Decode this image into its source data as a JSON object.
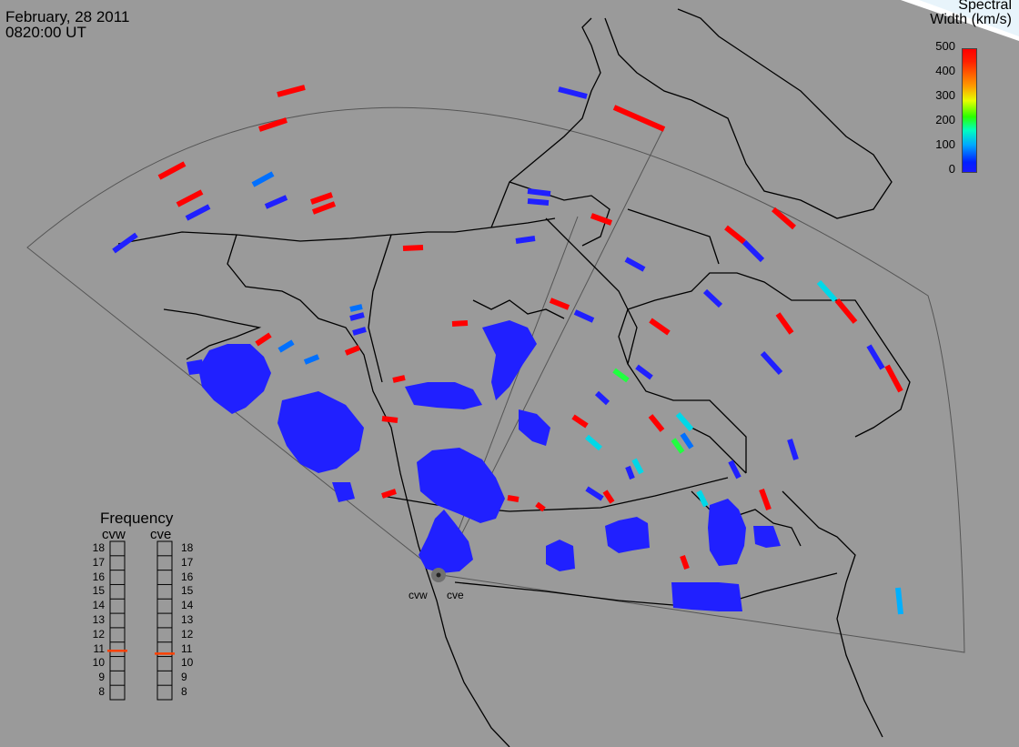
{
  "header": {
    "date": "February, 28 2011",
    "time": "0820:00 UT"
  },
  "colorbar": {
    "title_line1": "Spectral",
    "title_line2": "Width (km/s)",
    "ticks": [
      "500",
      "400",
      "300",
      "200",
      "100",
      "0"
    ]
  },
  "frequency": {
    "title": "Frequency",
    "radar_left": "cvw",
    "radar_right": "cve",
    "levels": [
      "18",
      "17",
      "16",
      "15",
      "14",
      "13",
      "12",
      "11",
      "10",
      "9",
      "8"
    ],
    "cvw_value": 10.9,
    "cve_value": 10.7
  },
  "radars": {
    "west": "cvw",
    "east": "cve"
  },
  "colors": {
    "background": "#9a9a9a",
    "land_lines": "#000000",
    "fov_lines": "#555555",
    "marker": "#ff4000"
  }
}
